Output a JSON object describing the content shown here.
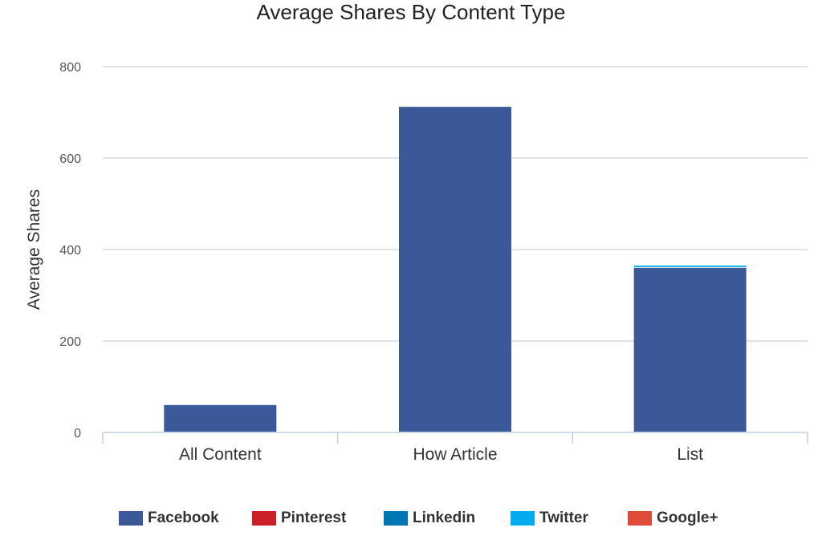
{
  "chart_data": {
    "type": "bar",
    "stacked": true,
    "title": "Average Shares By Content Type",
    "xlabel": "",
    "ylabel": "Average Shares",
    "ylim": [
      0,
      800
    ],
    "yticks": [
      "0",
      "200",
      "400",
      "600",
      "800"
    ],
    "grid": true,
    "legend_position": "bottom",
    "categories": [
      "All Content",
      "How Article",
      "List"
    ],
    "series": [
      {
        "name": "Facebook",
        "color": "#3b5998",
        "values": [
          60,
          712,
          360
        ]
      },
      {
        "name": "Pinterest",
        "color": "#cb2027",
        "values": [
          0,
          0,
          0
        ]
      },
      {
        "name": "Linkedin",
        "color": "#0077b5",
        "values": [
          0,
          0,
          0
        ]
      },
      {
        "name": "Twitter",
        "color": "#00aced",
        "values": [
          0,
          0,
          5
        ]
      },
      {
        "name": "Google+",
        "color": "#dd4b39",
        "values": [
          0,
          0,
          0
        ]
      }
    ]
  }
}
